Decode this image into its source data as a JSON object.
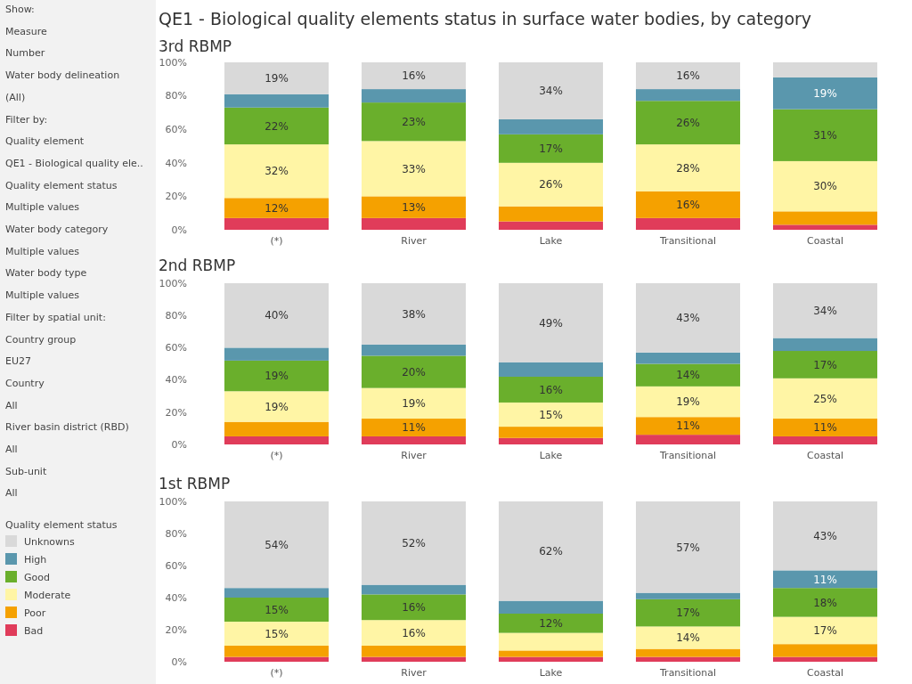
{
  "chart_data": [
    {
      "type": "other",
      "annotations": [
        "Show:",
        "Measure",
        "Number",
        "Water body delineation",
        "(All)",
        "Filter by:",
        "Quality element",
        "QE1 - Biological quality ele..",
        "Quality element status",
        "Multiple values",
        "Water body category",
        "Multiple values",
        "Water body type",
        "Multiple values",
        "Filter by spatial unit:",
        "Country group",
        "EU27",
        "Country",
        "All",
        "River basin district (RBD)",
        "All",
        "Sub-unit",
        "All"
      ]
    },
    {
      "type": "bar",
      "stacked": true,
      "title": "QE1 - Biological quality elements status in surface water bodies, by category",
      "subtitle": "3rd RBMP",
      "legend": "left",
      "legend_title": "Quality element status",
      "categories": [
        "(*)",
        "River",
        "Lake",
        "Transitional",
        "Coastal"
      ],
      "ylim": [
        0,
        100
      ],
      "yticks": [
        {
          "value": 0,
          "label": "0%"
        },
        {
          "value": 20,
          "label": "20%"
        },
        {
          "value": 40,
          "label": "40%"
        },
        {
          "value": 60,
          "label": "60%"
        },
        {
          "value": 80,
          "label": "80%"
        },
        {
          "value": 100,
          "label": "100%"
        }
      ],
      "series": [
        {
          "name": "Bad",
          "color": "#e03c5a",
          "values": [
            7,
            7,
            5,
            7,
            3
          ],
          "value_labels": [
            null,
            null,
            null,
            null,
            null
          ]
        },
        {
          "name": "Poor",
          "color": "#f5a100",
          "values": [
            12,
            13,
            9,
            16,
            8
          ],
          "value_labels": [
            "12%",
            "13%",
            null,
            "16%",
            null
          ]
        },
        {
          "name": "Moderate",
          "color": "#fff5a5",
          "values": [
            32,
            33,
            26,
            28,
            30
          ],
          "value_labels": [
            "32%",
            "33%",
            "26%",
            "28%",
            "30%"
          ]
        },
        {
          "name": "Good",
          "color": "#6aaf2c",
          "values": [
            22,
            23,
            17,
            26,
            31
          ],
          "value_labels": [
            "22%",
            "23%",
            "17%",
            "26%",
            "31%"
          ]
        },
        {
          "name": "High",
          "color": "#5a97ad",
          "values": [
            8,
            8,
            9,
            7,
            19
          ],
          "value_labels": [
            null,
            null,
            null,
            null,
            "19%"
          ]
        },
        {
          "name": "Unknowns",
          "color": "#d9d9d9",
          "values": [
            19,
            16,
            34,
            16,
            9
          ],
          "value_labels": [
            "19%",
            "16%",
            "34%",
            "16%",
            null
          ]
        }
      ]
    },
    {
      "type": "bar",
      "stacked": true,
      "title": "2nd RBMP",
      "categories": [
        "(*)",
        "River",
        "Lake",
        "Transitional",
        "Coastal"
      ],
      "ylim": [
        0,
        100
      ],
      "yticks": [
        {
          "value": 0,
          "label": "0%"
        },
        {
          "value": 20,
          "label": "20%"
        },
        {
          "value": 40,
          "label": "40%"
        },
        {
          "value": 60,
          "label": "60%"
        },
        {
          "value": 80,
          "label": "80%"
        },
        {
          "value": 100,
          "label": "100%"
        }
      ],
      "series": [
        {
          "color": "#e03c5a",
          "values": [
            5,
            5,
            4,
            6,
            5
          ],
          "value_labels": [
            null,
            null,
            null,
            null,
            null
          ]
        },
        {
          "color": "#f5a100",
          "values": [
            9,
            11,
            7,
            11,
            11
          ],
          "value_labels": [
            null,
            "11%",
            null,
            "11%",
            "11%"
          ]
        },
        {
          "color": "#fff5a5",
          "values": [
            19,
            19,
            15,
            19,
            25
          ],
          "value_labels": [
            "19%",
            "19%",
            "15%",
            "19%",
            "25%"
          ]
        },
        {
          "color": "#6aaf2c",
          "values": [
            19,
            20,
            16,
            14,
            17
          ],
          "value_labels": [
            "19%",
            "20%",
            "16%",
            "14%",
            "17%"
          ]
        },
        {
          "color": "#5a97ad",
          "values": [
            8,
            7,
            9,
            7,
            8
          ],
          "value_labels": [
            null,
            null,
            null,
            null,
            null
          ]
        },
        {
          "color": "#d9d9d9",
          "values": [
            40,
            38,
            49,
            43,
            34
          ],
          "value_labels": [
            "40%",
            "38%",
            "49%",
            "43%",
            "34%"
          ]
        }
      ]
    },
    {
      "type": "bar",
      "stacked": true,
      "title": "1st RBMP",
      "categories": [
        "(*)",
        "River",
        "Lake",
        "Transitional",
        "Coastal"
      ],
      "ylim": [
        0,
        100
      ],
      "yticks": [
        {
          "value": 0,
          "label": "0%"
        },
        {
          "value": 20,
          "label": "20%"
        },
        {
          "value": 40,
          "label": "40%"
        },
        {
          "value": 60,
          "label": "60%"
        },
        {
          "value": 80,
          "label": "80%"
        },
        {
          "value": 100,
          "label": "100%"
        }
      ],
      "series": [
        {
          "color": "#e03c5a",
          "values": [
            3,
            3,
            3,
            3,
            3
          ],
          "value_labels": [
            null,
            null,
            null,
            null,
            null
          ]
        },
        {
          "color": "#f5a100",
          "values": [
            7,
            7,
            4,
            5,
            8
          ],
          "value_labels": [
            null,
            null,
            null,
            null,
            null
          ]
        },
        {
          "color": "#fff5a5",
          "values": [
            15,
            16,
            11,
            14,
            17
          ],
          "value_labels": [
            "15%",
            "16%",
            null,
            "14%",
            "17%"
          ]
        },
        {
          "color": "#6aaf2c",
          "values": [
            15,
            16,
            12,
            17,
            18
          ],
          "value_labels": [
            "15%",
            "16%",
            "12%",
            "17%",
            "18%"
          ]
        },
        {
          "color": "#5a97ad",
          "values": [
            6,
            6,
            8,
            4,
            11
          ],
          "value_labels": [
            null,
            null,
            null,
            null,
            "11%"
          ]
        },
        {
          "color": "#d9d9d9",
          "values": [
            54,
            52,
            62,
            57,
            43
          ],
          "value_labels": [
            "54%",
            "52%",
            "62%",
            "57%",
            "43%"
          ]
        }
      ]
    }
  ]
}
